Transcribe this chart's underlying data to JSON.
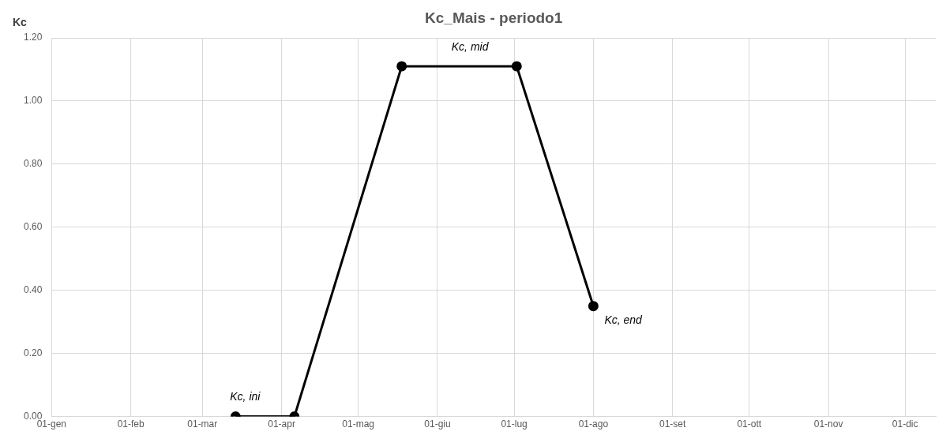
{
  "chart_data": {
    "type": "line",
    "title": "Kc_Mais - periodo1",
    "ylabel": "Kc",
    "x": [
      "--03-14",
      "--04-06",
      "--05-18",
      "--07-02",
      "--08-01"
    ],
    "series": [
      {
        "color": "#000000",
        "values": [
          0,
          0,
          1.11,
          1.11,
          0.35
        ]
      }
    ],
    "xlim": [
      "--01-01",
      "--12-13"
    ],
    "xticks": [
      {
        "value": "--01-01",
        "label": "01-gen"
      },
      {
        "value": "--02-01",
        "label": "01-feb"
      },
      {
        "value": "--03-01",
        "label": "01-mar"
      },
      {
        "value": "--04-01",
        "label": "01-apr"
      },
      {
        "value": "--05-01",
        "label": "01-mag"
      },
      {
        "value": "--06-01",
        "label": "01-giu"
      },
      {
        "value": "--07-01",
        "label": "01-lug"
      },
      {
        "value": "--08-01",
        "label": "01-ago"
      },
      {
        "value": "--09-01",
        "label": "01-set"
      },
      {
        "value": "--10-01",
        "label": "01-ott"
      },
      {
        "value": "--11-01",
        "label": "01-nov"
      },
      {
        "value": "--12-01",
        "label": "01-dic"
      }
    ],
    "ylim": [
      0,
      1.2
    ],
    "yticks": [
      {
        "value": 0,
        "label": "0.00"
      },
      {
        "value": 0.2,
        "label": "0.20"
      },
      {
        "value": 0.4,
        "label": "0.40"
      },
      {
        "value": 0.6,
        "label": "0.60"
      },
      {
        "value": 0.8,
        "label": "0.80"
      },
      {
        "value": 1,
        "label": "1.00"
      },
      {
        "value": 1.2,
        "label": "1.20"
      }
    ],
    "annotations": [
      {
        "text": "Kc, ini",
        "x": "--03-14",
        "y": 0
      },
      {
        "text": "Kc, mid",
        "x": "--06-10",
        "y": 1.11
      },
      {
        "text": "Kc, end",
        "x": "--08-01",
        "y": 0.35
      }
    ],
    "grid": true,
    "legend": false,
    "marker": "circle",
    "line_style": "solid"
  }
}
